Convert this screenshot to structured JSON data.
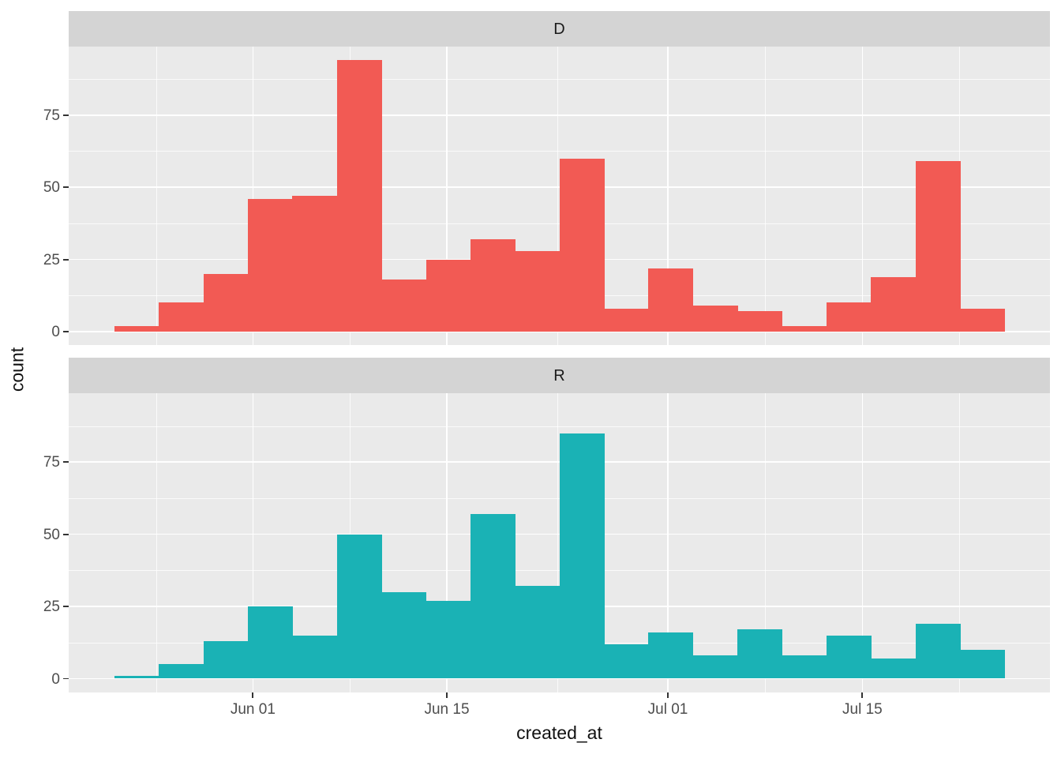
{
  "figure": {
    "background": "#FFFFFF"
  },
  "chart_data": {
    "type": "bar",
    "subtype": "faceted_histogram",
    "title": "",
    "xlabel": "created_at",
    "ylabel": "count",
    "facets": [
      "D",
      "R"
    ],
    "x_tick_labels": [
      "Jun 01",
      "Jun 15",
      "Jul 01",
      "Jul 15"
    ],
    "y_tick_labels": [
      "0",
      "25",
      "50",
      "75"
    ],
    "y_major_values": [
      0,
      25,
      50,
      75
    ],
    "y_minor_values": [
      12.5,
      37.5,
      62.5,
      87.5
    ],
    "ylim": [
      0,
      98
    ],
    "x_range_approx": [
      "May 22",
      "Jul 25"
    ],
    "bin_count": 20,
    "bin_width_days_approx": 3.2,
    "grid": "white major+minor gridlines on grey panel",
    "legend_position": "none",
    "series": [
      {
        "name": "D",
        "fill": "#F25A54",
        "values": [
          2,
          10,
          20,
          46,
          47,
          94,
          18,
          25,
          32,
          28,
          60,
          8,
          22,
          9,
          7,
          2,
          10,
          19,
          59,
          8
        ]
      },
      {
        "name": "R",
        "fill": "#1AB2B5",
        "values": [
          1,
          5,
          13,
          25,
          15,
          50,
          30,
          27,
          57,
          32,
          85,
          12,
          16,
          8,
          17,
          8,
          15,
          7,
          19,
          10
        ]
      }
    ]
  },
  "theme": {
    "panel_bg": "#EAEAEA",
    "strip_bg": "#D4D4D4",
    "gridline_color": "#FFFFFF",
    "tick_color": "#333333",
    "tick_label_color": "#4D4D4D",
    "text_color": "#111111"
  }
}
